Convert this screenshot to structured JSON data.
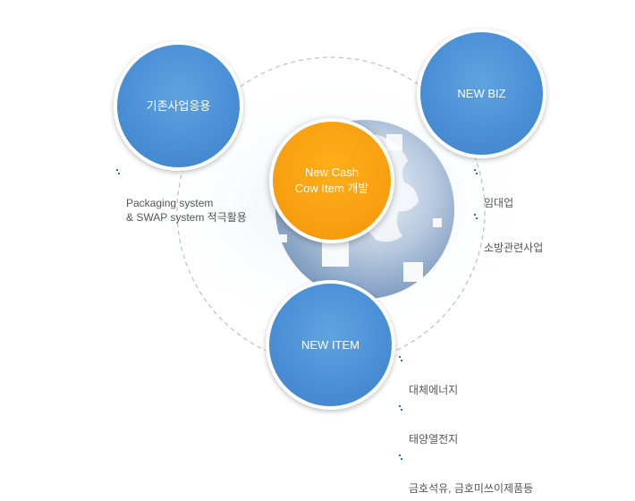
{
  "circles": {
    "existing": {
      "label": "기존사업응용",
      "color": "#4a90d6"
    },
    "biz": {
      "label": "NEW BIZ",
      "color": "#4a90d6"
    },
    "item": {
      "label": "NEW ITEM",
      "color": "#4a90d6"
    },
    "cash": {
      "label": "New Cash\nCow Item 개발",
      "color": "#f9a010"
    }
  },
  "bullets": {
    "existing": [
      "Packaging system\n& SWAP system 적극활용"
    ],
    "biz": [
      "임대업",
      "소방관련사업"
    ],
    "item": [
      "대체에너지",
      "태양열전지",
      "금호석유, 금호미쓰이제품등"
    ]
  }
}
